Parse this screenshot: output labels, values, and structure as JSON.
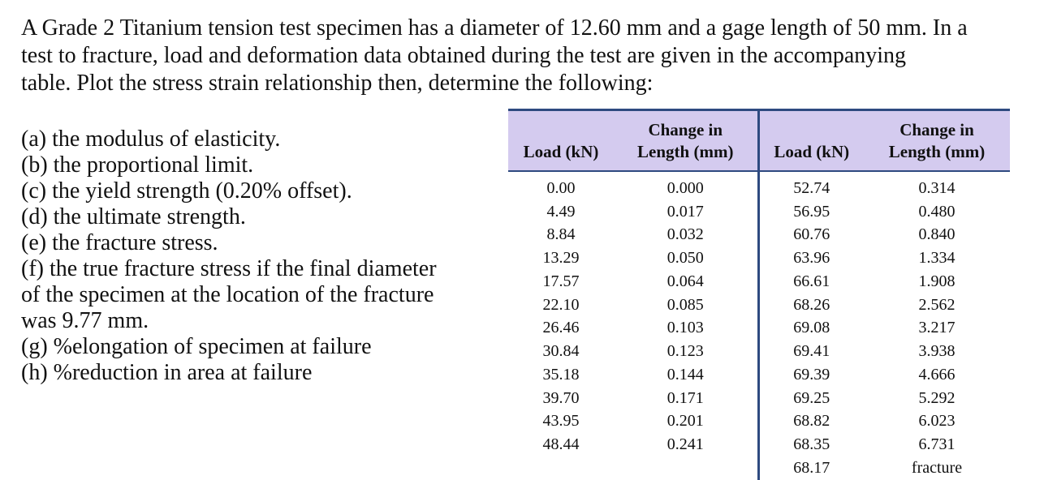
{
  "intro": {
    "line1": "A Grade 2 Titanium tension test specimen has a diameter of 12.60 mm and a gage length of 50 mm. In a",
    "line2": "test to fracture, load and deformation data obtained during the test are given in the accompanying",
    "line3": "table. Plot the stress strain relationship then, determine the following:"
  },
  "questions": [
    "(a) the modulus of elasticity.",
    "(b) the proportional limit.",
    "(c) the yield strength (0.20% offset).",
    "(d) the ultimate strength.",
    "(e) the fracture stress.",
    "(f) the true fracture stress if the final diameter",
    "of the specimen at the location of the fracture",
    "was 9.77 mm.",
    "(g) %elongation of specimen at failure",
    "(h) %reduction in area at failure"
  ],
  "table": {
    "headers": {
      "load1": "Load (kN)",
      "change1_a": "Change in",
      "change1_b": "Length (mm)",
      "load2": "Load (kN)",
      "change2_a": "Change in",
      "change2_b": "Length (mm)"
    },
    "rows": [
      [
        "0.00",
        "0.000",
        "52.74",
        "0.314"
      ],
      [
        "4.49",
        "0.017",
        "56.95",
        "0.480"
      ],
      [
        "8.84",
        "0.032",
        "60.76",
        "0.840"
      ],
      [
        "13.29",
        "0.050",
        "63.96",
        "1.334"
      ],
      [
        "17.57",
        "0.064",
        "66.61",
        "1.908"
      ],
      [
        "22.10",
        "0.085",
        "68.26",
        "2.562"
      ],
      [
        "26.46",
        "0.103",
        "69.08",
        "3.217"
      ],
      [
        "30.84",
        "0.123",
        "69.41",
        "3.938"
      ],
      [
        "35.18",
        "0.144",
        "69.39",
        "4.666"
      ],
      [
        "39.70",
        "0.171",
        "69.25",
        "5.292"
      ],
      [
        "43.95",
        "0.201",
        "68.82",
        "6.023"
      ],
      [
        "48.44",
        "0.241",
        "68.35",
        "6.731"
      ],
      [
        "",
        "",
        "68.17",
        "fracture"
      ]
    ]
  }
}
